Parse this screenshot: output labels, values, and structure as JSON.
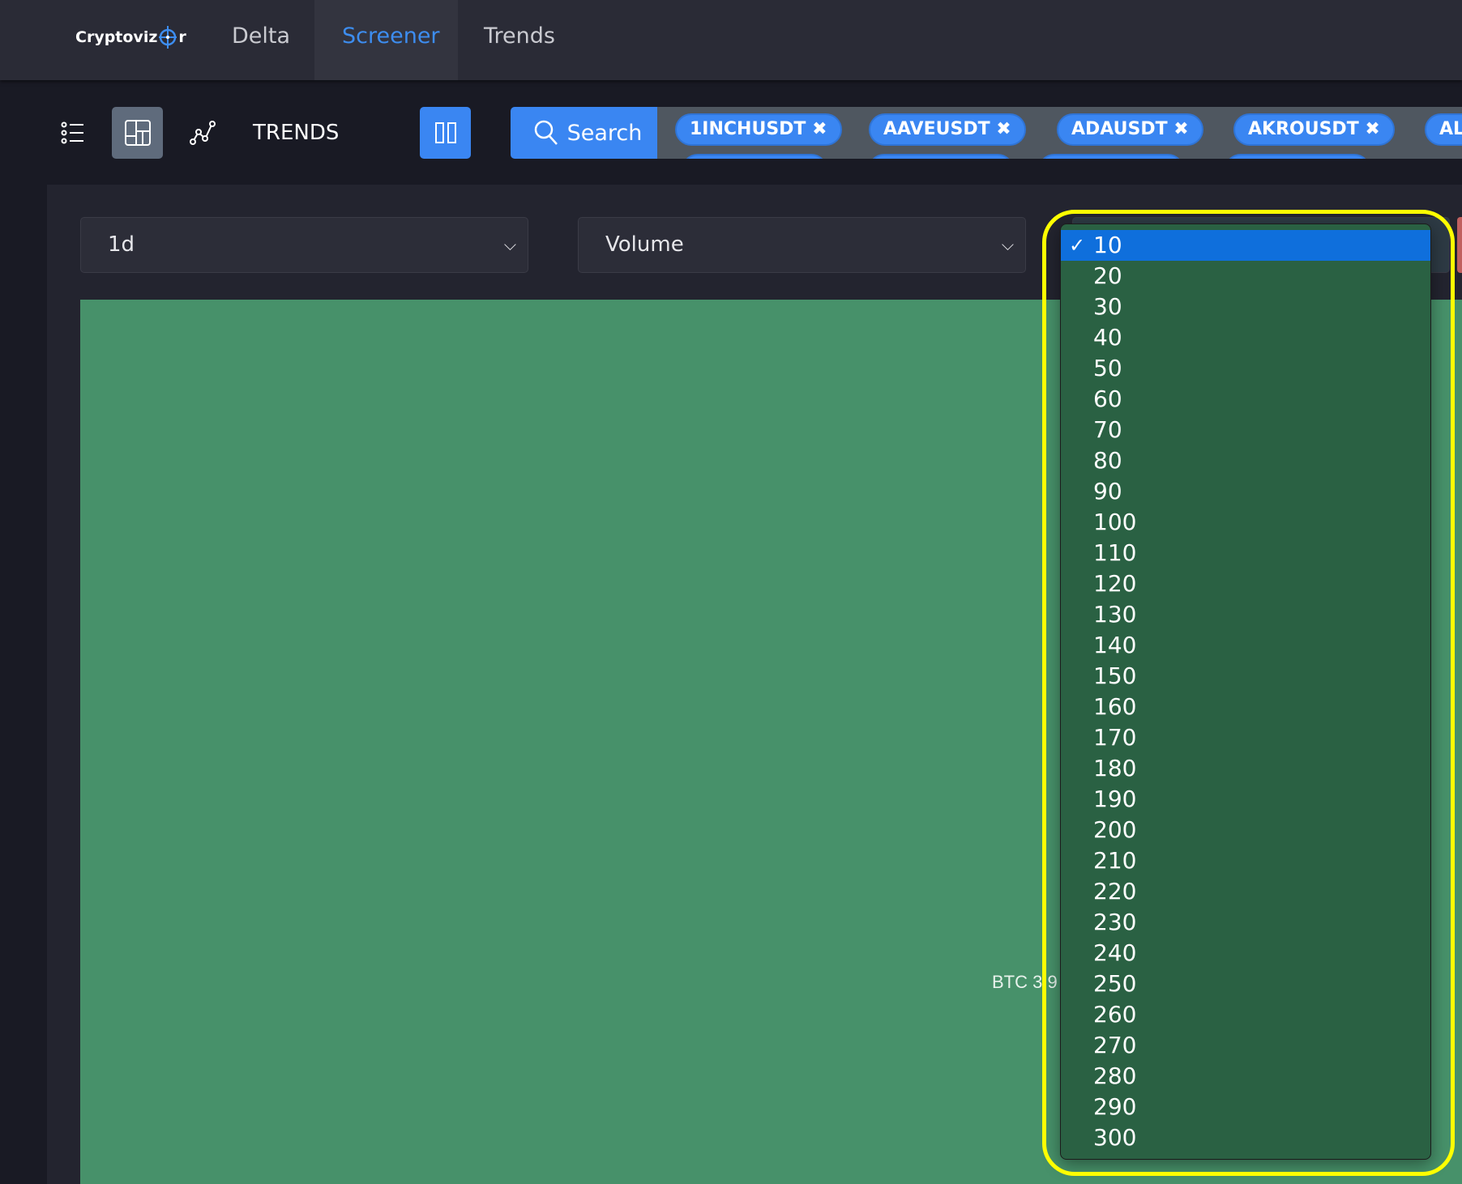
{
  "nav": {
    "logo": "Cryptoviz",
    "logo_suffix": "r",
    "tabs": [
      {
        "label": "Delta"
      },
      {
        "label": "Screener",
        "active": true
      },
      {
        "label": "Trends"
      }
    ]
  },
  "toolbar": {
    "trends_label": "TRENDS",
    "search_label": "Search",
    "tags": [
      "1INCHUSDT",
      "AAVEUSDT",
      "ADAUSDT",
      "AKROUSDT",
      "AL"
    ]
  },
  "filters": {
    "interval": "1d",
    "metric": "Volume"
  },
  "treemap": {
    "label": "BTC 3.9"
  },
  "dropdown": {
    "selected": "10",
    "options": [
      "10",
      "20",
      "30",
      "40",
      "50",
      "60",
      "70",
      "80",
      "90",
      "100",
      "110",
      "120",
      "130",
      "140",
      "150",
      "160",
      "170",
      "180",
      "190",
      "200",
      "210",
      "220",
      "230",
      "240",
      "250",
      "260",
      "270",
      "280",
      "290",
      "300"
    ]
  },
  "colors": {
    "accent": "#3a86f2",
    "treemap_green": "#47916a",
    "highlight": "#ffff00",
    "option_selected": "#0f6fdc"
  }
}
